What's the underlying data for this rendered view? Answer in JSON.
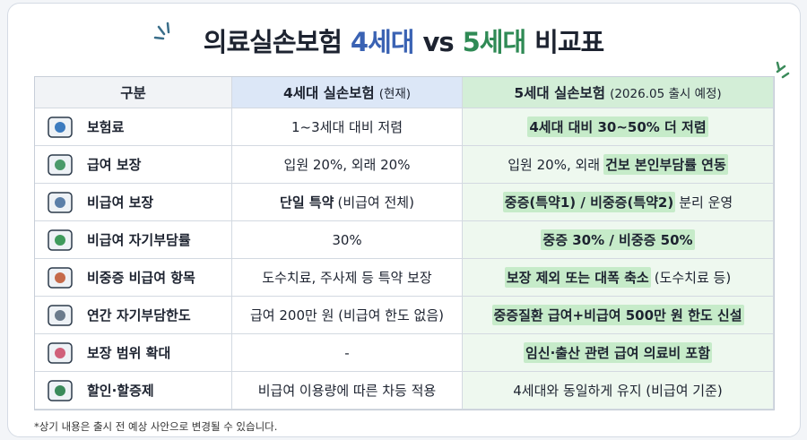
{
  "title": {
    "parts": [
      {
        "text": "의료실손보험"
      },
      {
        "text": "4세대",
        "color": "#3a62b3"
      },
      {
        "text": "vs"
      },
      {
        "text": "5세대",
        "color": "#2f8a55"
      },
      {
        "text": "비교표"
      }
    ]
  },
  "table": {
    "header": {
      "label": "구분",
      "columns": [
        {
          "name": "4세대 실손보험",
          "note": "(현재)"
        },
        {
          "name": "5세대 실손보험",
          "note": "(2026.05 출시 예정)"
        }
      ]
    },
    "rows": [
      {
        "label": "보험료",
        "cells": [
          [
            {
              "text": "1~3세대 대비 저렴"
            }
          ],
          [
            {
              "text": "4세대 대비 30~50% 더 저렴",
              "strong": true
            }
          ]
        ]
      },
      {
        "label": "급여 보장",
        "cells": [
          [
            {
              "text": "입원 20%, 외래 20%"
            }
          ],
          [
            {
              "text": "입원 20%, 외래"
            },
            {
              "text": "건보 본인부담률 연동",
              "strong": true
            }
          ]
        ]
      },
      {
        "label": "비급여 보장",
        "cells": [
          [
            {
              "text": "단일 특약",
              "strong": true
            },
            {
              "text": "(비급여 전체)"
            }
          ],
          [
            {
              "text": "중증(특약1) / 비중증(특약2)",
              "strong": true
            },
            {
              "text": "분리 운영"
            }
          ]
        ]
      },
      {
        "label": "비급여 자기부담률",
        "cells": [
          [
            {
              "text": "30%"
            }
          ],
          [
            {
              "text": "중증 30% / 비중증 50%",
              "strong": true
            }
          ]
        ]
      },
      {
        "label": "비중증 비급여 항목",
        "cells": [
          [
            {
              "text": "도수치료, 주사제 등 특약 보장"
            }
          ],
          [
            {
              "text": "보장 제외 또는 대폭 축소",
              "strong": true
            },
            {
              "text": "(도수치료 등)"
            }
          ]
        ]
      },
      {
        "label": "연간 자기부담한도",
        "cells": [
          [
            {
              "text": "급여 200만 원 (비급여 한도 없음)"
            }
          ],
          [
            {
              "text": "중증질환 급여+비급여 500만 원 한도 신설",
              "strong": true
            }
          ]
        ]
      },
      {
        "label": "보장 범위 확대",
        "cells": [
          [
            {
              "text": "-"
            }
          ],
          [
            {
              "text": "임신·출산 관련 급여 의료비 포함",
              "strong": true
            }
          ]
        ]
      },
      {
        "label": "할인·할증제",
        "cells": [
          [
            {
              "text": "비급여 이용량에 따른 차등 적용"
            }
          ],
          [
            {
              "text": "4세대와 동일하게 유지 (비급여 기준)"
            }
          ]
        ]
      }
    ]
  },
  "footnote": "*상기 내용은 출시 전 예상 사안으로 변경될 수 있습니다."
}
